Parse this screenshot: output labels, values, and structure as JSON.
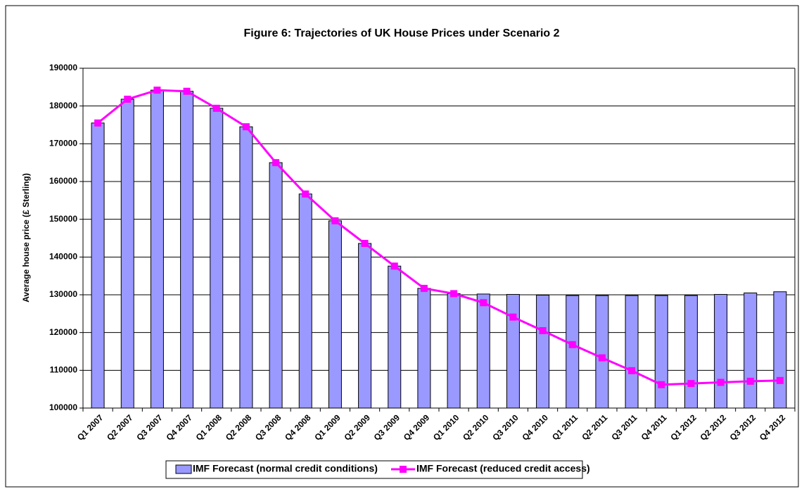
{
  "chart_data": {
    "type": "bar_line",
    "title": "Figure 6: Trajectories of UK House Prices under Scenario 2",
    "y_label": "Average house price (£ Sterling)",
    "categories": [
      "Q1 2007",
      "Q2 2007",
      "Q3 2007",
      "Q4 2007",
      "Q1 2008",
      "Q2 2008",
      "Q3 2008",
      "Q4 2008",
      "Q1 2009",
      "Q2 2009",
      "Q3 2009",
      "Q4 2009",
      "Q1 2010",
      "Q2 2010",
      "Q3 2010",
      "Q4 2010",
      "Q1 2011",
      "Q2 2011",
      "Q3 2011",
      "Q4 2011",
      "Q1 2012",
      "Q2 2012",
      "Q3 2012",
      "Q4 2012"
    ],
    "series": [
      {
        "name": "IMF Forecast (normal credit conditions)",
        "kind": "bar",
        "color": "#9999ff",
        "values": [
          175500,
          181800,
          184200,
          183900,
          179400,
          174500,
          165000,
          156700,
          149600,
          143600,
          137600,
          131700,
          130300,
          130200,
          130100,
          129900,
          129800,
          129800,
          129800,
          129800,
          129800,
          130100,
          130500,
          130800
        ]
      },
      {
        "name": "IMF Forecast (reduced credit access)",
        "kind": "line",
        "color": "#ff00ff",
        "values": [
          175500,
          181800,
          184200,
          183900,
          179400,
          174500,
          165000,
          156700,
          149600,
          143600,
          137600,
          131700,
          130300,
          127900,
          124100,
          120500,
          116800,
          113300,
          109900,
          106200,
          106500,
          106800,
          107100,
          107300
        ]
      }
    ],
    "ylim": [
      100000,
      190000
    ],
    "yticks": [
      100000,
      110000,
      120000,
      130000,
      140000,
      150000,
      160000,
      170000,
      180000,
      190000
    ],
    "grid": true
  }
}
